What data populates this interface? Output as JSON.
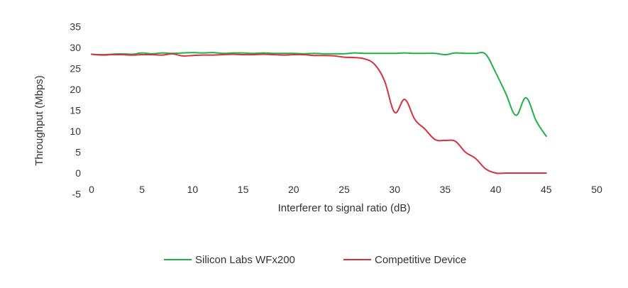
{
  "chart_data": {
    "type": "line",
    "title": "",
    "xlabel": "Interferer to signal ratio (dB)",
    "ylabel": "Throughput (Mbps)",
    "xlim": [
      0,
      50
    ],
    "ylim": [
      -5,
      35
    ],
    "xticks": [
      0,
      5,
      10,
      15,
      20,
      25,
      30,
      35,
      40,
      45,
      50
    ],
    "yticks": [
      -5,
      0,
      5,
      10,
      15,
      20,
      25,
      30,
      35
    ],
    "grid": false,
    "legend": "bottom",
    "series": [
      {
        "name": "Silicon Labs WFx200",
        "color": "#1db347",
        "x": [
          0,
          1,
          2,
          3,
          4,
          5,
          6,
          7,
          8,
          9,
          10,
          11,
          12,
          13,
          14,
          15,
          16,
          17,
          18,
          19,
          20,
          21,
          22,
          23,
          24,
          25,
          26,
          27,
          28,
          29,
          30,
          31,
          32,
          33,
          34,
          35,
          36,
          37,
          38,
          39,
          40,
          41,
          42,
          43,
          44,
          45
        ],
        "y": [
          28.4,
          28.3,
          28.4,
          28.5,
          28.4,
          28.7,
          28.5,
          28.7,
          28.6,
          28.7,
          28.8,
          28.7,
          28.8,
          28.6,
          28.7,
          28.7,
          28.6,
          28.7,
          28.6,
          28.6,
          28.6,
          28.5,
          28.6,
          28.5,
          28.5,
          28.5,
          28.7,
          28.6,
          28.6,
          28.6,
          28.6,
          28.7,
          28.6,
          28.6,
          28.6,
          28.3,
          28.7,
          28.6,
          28.6,
          28.4,
          24.0,
          19.0,
          13.8,
          18.0,
          12.5,
          8.8
        ]
      },
      {
        "name": "Competitive Device",
        "color": "#d9303e",
        "x": [
          0,
          1,
          2,
          3,
          4,
          5,
          6,
          7,
          8,
          9,
          10,
          11,
          12,
          13,
          14,
          15,
          16,
          17,
          18,
          19,
          20,
          21,
          22,
          23,
          24,
          25,
          26,
          27,
          28,
          29,
          30,
          31,
          32,
          33,
          34,
          35,
          36,
          37,
          38,
          39,
          40,
          41,
          42,
          43,
          44,
          45
        ],
        "y": [
          28.4,
          28.2,
          28.3,
          28.3,
          28.2,
          28.3,
          28.3,
          28.2,
          28.5,
          28.0,
          28.1,
          28.2,
          28.2,
          28.3,
          28.4,
          28.3,
          28.3,
          28.4,
          28.3,
          28.2,
          28.3,
          28.3,
          28.1,
          28.1,
          28.0,
          27.7,
          27.6,
          27.3,
          26.0,
          22.0,
          14.5,
          17.6,
          12.8,
          10.5,
          8.0,
          7.8,
          7.6,
          5.0,
          3.5,
          1.0,
          0.0,
          0.0,
          0.0,
          0.0,
          0.0,
          0.0
        ]
      }
    ]
  }
}
